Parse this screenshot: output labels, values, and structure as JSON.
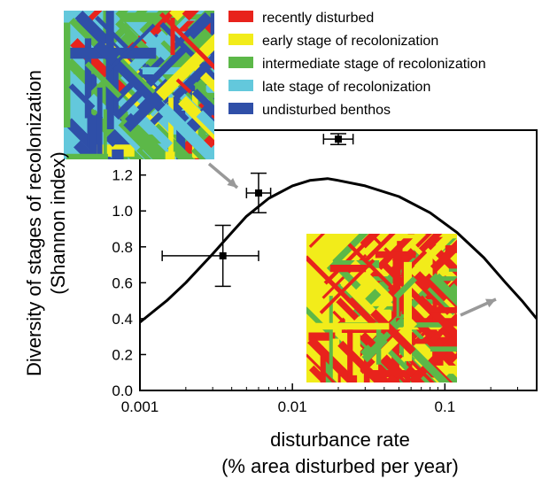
{
  "chart_data": {
    "type": "line",
    "xscale": "log",
    "xlabel": [
      "disturbance rate",
      "(% area disturbed per year)"
    ],
    "ylabel": [
      "Diversity of stages of recolonization",
      "(Shannon index)"
    ],
    "xlim": [
      0.001,
      0.4
    ],
    "ylim": [
      0.0,
      1.45
    ],
    "xticks": [
      0.001,
      0.01,
      0.1
    ],
    "xtick_labels": [
      "0.001",
      "0.01",
      "0.1"
    ],
    "yticks": [
      0.0,
      0.2,
      0.4,
      0.6,
      0.8,
      1.0,
      1.2
    ],
    "ytick_labels": [
      "0.0",
      "0.2",
      "0.4",
      "0.6",
      "0.8",
      "1.0",
      "1.2"
    ],
    "curve": {
      "x": [
        0.001,
        0.0015,
        0.002,
        0.003,
        0.004,
        0.005,
        0.007,
        0.01,
        0.013,
        0.017,
        0.02,
        0.03,
        0.05,
        0.08,
        0.12,
        0.18,
        0.25,
        0.32,
        0.4
      ],
      "y": [
        0.38,
        0.5,
        0.6,
        0.76,
        0.88,
        0.97,
        1.07,
        1.14,
        1.17,
        1.18,
        1.17,
        1.14,
        1.08,
        0.99,
        0.88,
        0.74,
        0.6,
        0.5,
        0.4
      ]
    },
    "points": [
      {
        "x": 0.0035,
        "y": 0.75,
        "xerr": [
          0.0014,
          0.006
        ],
        "yerr": [
          0.58,
          0.92
        ]
      },
      {
        "x": 0.006,
        "y": 1.1,
        "xerr": [
          0.005,
          0.0072
        ],
        "yerr": [
          0.99,
          1.21
        ]
      },
      {
        "x": 0.02,
        "y": 1.4,
        "xerr": [
          0.016,
          0.025
        ],
        "yerr": [
          1.37,
          1.43
        ]
      }
    ],
    "legend": {
      "position": "top",
      "entries": [
        {
          "label": "recently disturbed",
          "color": "#e8231c"
        },
        {
          "label": "early stage of recolonization",
          "color": "#f2ec1a"
        },
        {
          "label": "intermediate stage of recolonization",
          "color": "#5cb848"
        },
        {
          "label": "late stage of recolonization",
          "color": "#63c8dc"
        },
        {
          "label": "undisturbed benthos",
          "color": "#2f4fa8"
        }
      ]
    }
  }
}
